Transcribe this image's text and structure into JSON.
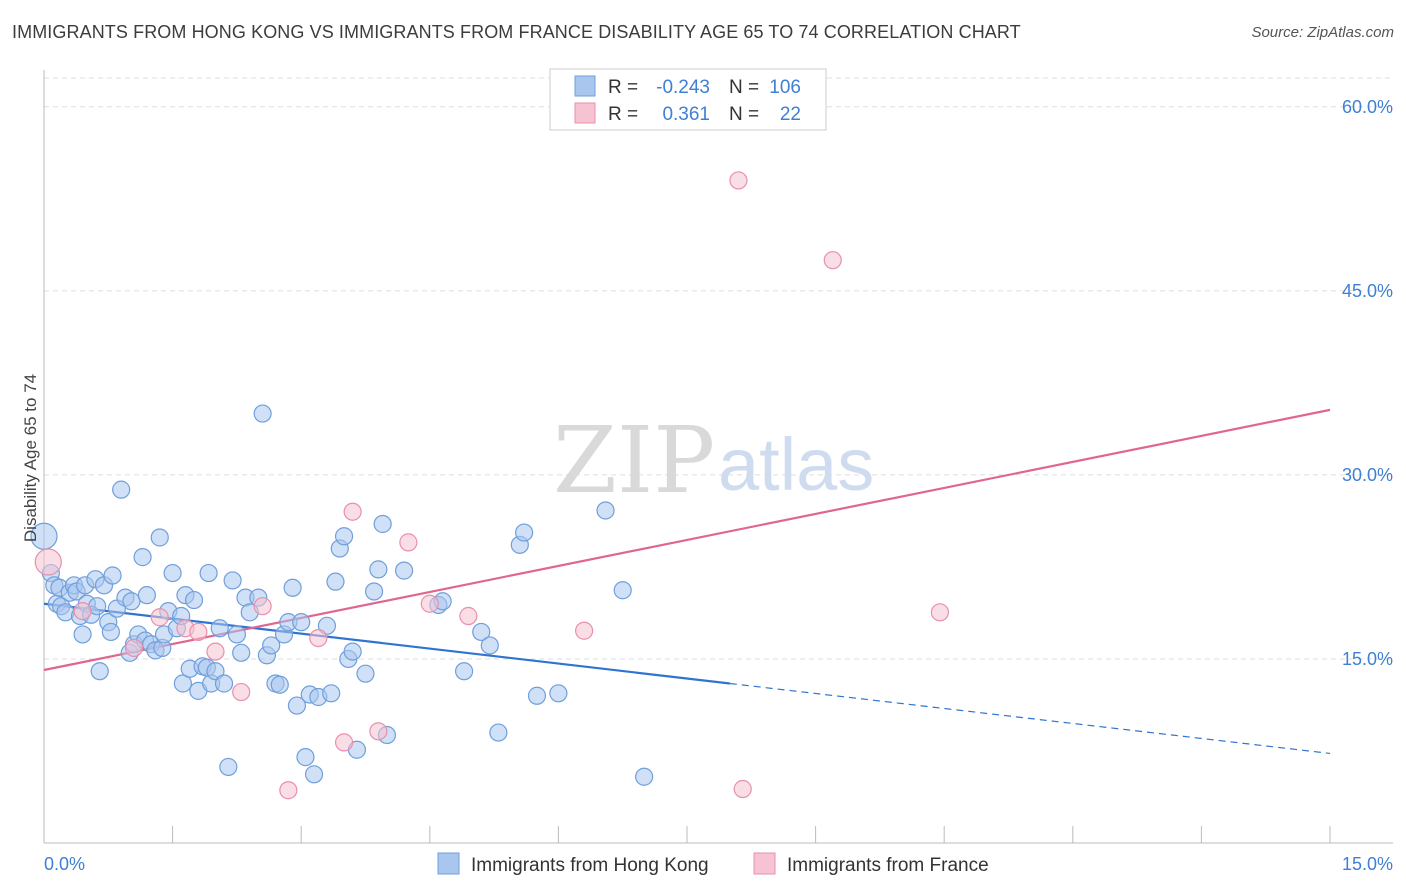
{
  "title": "IMMIGRANTS FROM HONG KONG VS IMMIGRANTS FROM FRANCE DISABILITY AGE 65 TO 74 CORRELATION CHART",
  "source": "Source: ZipAtlas.com",
  "watermark": {
    "zip": "ZIP",
    "atlas": "atlas"
  },
  "legend": {
    "rows": [
      {
        "r_label": "R =",
        "r_value": "-0.243",
        "n_label": "N =",
        "n_value": "106"
      },
      {
        "r_label": "R =",
        "r_value": "0.361",
        "n_label": "N =",
        "n_value": "22"
      }
    ]
  },
  "colors": {
    "blue_fill": "#a9c7ee",
    "blue_stroke": "#6f9fdc",
    "blue_line": "#2f74d0",
    "pink_fill": "#f6c3d2",
    "pink_stroke": "#e98fae",
    "pink_line": "#e0668f",
    "tick_text": "#3f7fd4",
    "grid": "#dddddd"
  },
  "chart_data": {
    "type": "scatter",
    "title": "IMMIGRANTS FROM HONG KONG VS IMMIGRANTS FROM FRANCE DISABILITY AGE 65 TO 74 CORRELATION CHART",
    "ylabel": "Disability Age 65 to 74",
    "xlabel": "",
    "xlim": [
      0,
      15
    ],
    "ylim": [
      0,
      63
    ],
    "x_tick_labels": [
      "0.0%",
      "15.0%"
    ],
    "y_ticks": [
      15,
      30,
      45,
      60
    ],
    "y_tick_labels": [
      "15.0%",
      "30.0%",
      "45.0%",
      "60.0%"
    ],
    "grid": true,
    "legend_position": "top-center",
    "series": [
      {
        "name": "Immigrants from Hong Kong",
        "color": "#a9c7ee",
        "r": -0.243,
        "n": 106,
        "trend": {
          "x0": 0,
          "y0": 19.5,
          "x1": 8.0,
          "y1": 13.0,
          "dashed_to_x": 15,
          "dashed_to_y": 7.3
        },
        "points": [
          [
            0.0,
            25.0
          ],
          [
            0.08,
            22.0
          ],
          [
            0.12,
            21.0
          ],
          [
            0.15,
            19.5
          ],
          [
            0.18,
            20.8
          ],
          [
            0.2,
            19.3
          ],
          [
            0.25,
            18.8
          ],
          [
            0.3,
            20.4
          ],
          [
            0.35,
            21.0
          ],
          [
            0.38,
            20.5
          ],
          [
            0.42,
            18.5
          ],
          [
            0.45,
            17.0
          ],
          [
            0.48,
            21.0
          ],
          [
            0.5,
            19.5
          ],
          [
            0.55,
            18.6
          ],
          [
            0.6,
            21.5
          ],
          [
            0.62,
            19.3
          ],
          [
            0.65,
            14.0
          ],
          [
            0.7,
            21.0
          ],
          [
            0.75,
            18.0
          ],
          [
            0.78,
            17.2
          ],
          [
            0.8,
            21.8
          ],
          [
            0.85,
            19.1
          ],
          [
            0.9,
            28.8
          ],
          [
            0.95,
            20.0
          ],
          [
            1.0,
            15.5
          ],
          [
            1.02,
            19.7
          ],
          [
            1.05,
            16.2
          ],
          [
            1.1,
            17.0
          ],
          [
            1.15,
            23.3
          ],
          [
            1.18,
            16.5
          ],
          [
            1.2,
            20.2
          ],
          [
            1.25,
            16.2
          ],
          [
            1.3,
            15.7
          ],
          [
            1.35,
            24.9
          ],
          [
            1.38,
            15.9
          ],
          [
            1.4,
            17.0
          ],
          [
            1.45,
            18.9
          ],
          [
            1.5,
            22.0
          ],
          [
            1.55,
            17.5
          ],
          [
            1.6,
            18.5
          ],
          [
            1.62,
            13.0
          ],
          [
            1.65,
            20.2
          ],
          [
            1.7,
            14.2
          ],
          [
            1.75,
            19.8
          ],
          [
            1.8,
            12.4
          ],
          [
            1.85,
            14.4
          ],
          [
            1.9,
            14.3
          ],
          [
            1.92,
            22.0
          ],
          [
            1.95,
            13.0
          ],
          [
            2.0,
            14.0
          ],
          [
            2.05,
            17.5
          ],
          [
            2.1,
            13.0
          ],
          [
            2.15,
            6.2
          ],
          [
            2.2,
            21.4
          ],
          [
            2.25,
            17.0
          ],
          [
            2.3,
            15.5
          ],
          [
            2.35,
            20.0
          ],
          [
            2.4,
            18.8
          ],
          [
            2.5,
            20.0
          ],
          [
            2.55,
            35.0
          ],
          [
            2.6,
            15.3
          ],
          [
            2.65,
            16.1
          ],
          [
            2.7,
            13.0
          ],
          [
            2.75,
            12.9
          ],
          [
            2.8,
            17.0
          ],
          [
            2.85,
            18.0
          ],
          [
            2.9,
            20.8
          ],
          [
            2.95,
            11.2
          ],
          [
            3.0,
            18.0
          ],
          [
            3.05,
            7.0
          ],
          [
            3.1,
            12.1
          ],
          [
            3.15,
            5.6
          ],
          [
            3.2,
            11.9
          ],
          [
            3.3,
            17.7
          ],
          [
            3.35,
            12.2
          ],
          [
            3.4,
            21.3
          ],
          [
            3.45,
            24.0
          ],
          [
            3.5,
            25.0
          ],
          [
            3.55,
            15.0
          ],
          [
            3.6,
            15.6
          ],
          [
            3.65,
            7.6
          ],
          [
            3.75,
            13.8
          ],
          [
            3.85,
            20.5
          ],
          [
            3.9,
            22.3
          ],
          [
            3.95,
            26.0
          ],
          [
            4.0,
            8.8
          ],
          [
            4.2,
            22.2
          ],
          [
            4.6,
            19.4
          ],
          [
            4.65,
            19.7
          ],
          [
            4.9,
            14.0
          ],
          [
            5.1,
            17.2
          ],
          [
            5.2,
            16.1
          ],
          [
            5.3,
            9.0
          ],
          [
            5.55,
            24.3
          ],
          [
            5.6,
            25.3
          ],
          [
            5.75,
            12.0
          ],
          [
            6.0,
            12.2
          ],
          [
            6.55,
            27.1
          ],
          [
            6.75,
            20.6
          ],
          [
            7.0,
            5.4
          ]
        ]
      },
      {
        "name": "Immigrants from France",
        "color": "#f6c3d2",
        "r": 0.361,
        "n": 22,
        "trend": {
          "x0": 0,
          "y0": 14.1,
          "x1": 15,
          "y1": 35.3
        },
        "points": [
          [
            0.05,
            22.9
          ],
          [
            0.45,
            18.9
          ],
          [
            1.05,
            15.9
          ],
          [
            1.35,
            18.4
          ],
          [
            1.65,
            17.5
          ],
          [
            1.8,
            17.2
          ],
          [
            2.0,
            15.6
          ],
          [
            2.3,
            12.3
          ],
          [
            2.55,
            19.3
          ],
          [
            2.85,
            4.3
          ],
          [
            3.2,
            16.7
          ],
          [
            3.5,
            8.2
          ],
          [
            3.6,
            27.0
          ],
          [
            3.9,
            9.1
          ],
          [
            4.25,
            24.5
          ],
          [
            4.5,
            19.5
          ],
          [
            4.95,
            18.5
          ],
          [
            6.3,
            17.3
          ],
          [
            8.1,
            54.0
          ],
          [
            8.15,
            4.4
          ],
          [
            9.2,
            47.5
          ],
          [
            10.45,
            18.8
          ]
        ]
      }
    ]
  }
}
